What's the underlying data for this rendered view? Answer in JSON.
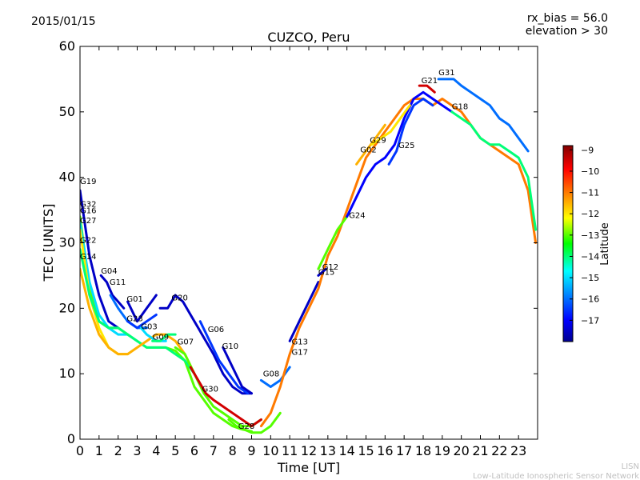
{
  "header": {
    "date": "2015/01/15",
    "rx_bias": "rx_bias = 56.0",
    "elevation": "elevation > 30"
  },
  "footer": {
    "line1": "LISN",
    "line2": "Low-Latitude Ionospheric Sensor Network"
  },
  "chart_data": {
    "type": "scatter",
    "title": "CUZCO, Peru",
    "xlabel": "Time [UT]",
    "ylabel": "TEC [UNITS]",
    "xlim": [
      0,
      24
    ],
    "ylim": [
      0,
      60
    ],
    "xticks": [
      0,
      1,
      2,
      3,
      4,
      5,
      6,
      7,
      8,
      9,
      10,
      11,
      12,
      13,
      14,
      15,
      16,
      17,
      18,
      19,
      20,
      21,
      22,
      23
    ],
    "yticks": [
      0,
      10,
      20,
      30,
      40,
      50,
      60
    ],
    "grid": false,
    "colorbar": {
      "label": "Latitude",
      "range": [
        -18,
        -8.8
      ],
      "ticks": [
        -9,
        -10,
        -11,
        -12,
        -13,
        -14,
        -15,
        -16,
        -17
      ]
    },
    "series": [
      {
        "name": "G19",
        "lat": -17.5,
        "x": [
          0,
          0.5,
          1,
          1.5,
          2
        ],
        "y": [
          38,
          28,
          22,
          18,
          17
        ]
      },
      {
        "name": "G32",
        "lat": -13,
        "x": [
          0,
          0.5,
          1,
          1.5,
          2,
          2.5,
          3,
          3.5,
          4,
          4.5,
          5,
          5.5,
          6,
          6.5,
          7,
          7.5,
          8,
          8.5,
          9
        ],
        "y": [
          34,
          23,
          18,
          17,
          17,
          16,
          15,
          14,
          14,
          14,
          13.5,
          12,
          8,
          6,
          4,
          3,
          2,
          1.5,
          1.2
        ]
      },
      {
        "name": "G16",
        "lat": -15,
        "x": [
          0,
          0.5,
          1,
          1.5,
          2,
          2.5,
          3
        ],
        "y": [
          33,
          24,
          19,
          17,
          16,
          16,
          15
        ]
      },
      {
        "name": "G27",
        "lat": -12,
        "x": [
          0,
          0.5,
          1,
          1.5,
          2,
          2.5
        ],
        "y": [
          32,
          22,
          17,
          14,
          13,
          13
        ]
      },
      {
        "name": "G22",
        "lat": -14,
        "x": [
          0,
          0.5,
          1,
          1.5,
          2,
          2.5,
          3,
          3.5,
          4,
          4.5,
          5,
          5.5,
          6
        ],
        "y": [
          29,
          22,
          18,
          17,
          17,
          16,
          15,
          14,
          14,
          14,
          13,
          12,
          10
        ]
      },
      {
        "name": "G14",
        "lat": -11.5,
        "x": [
          0,
          0.5,
          1,
          1.5,
          2,
          2.5,
          3,
          3.5,
          4,
          4.5,
          5,
          5.5,
          6
        ],
        "y": [
          26,
          20,
          16,
          14,
          13,
          13,
          14,
          15,
          16,
          16,
          15,
          13,
          10
        ]
      },
      {
        "name": "G04",
        "lat": -17.5,
        "x": [
          1.1,
          1.4,
          1.7,
          2,
          2.3
        ],
        "y": [
          25,
          24,
          22,
          21,
          20
        ]
      },
      {
        "name": "G11",
        "lat": -16,
        "x": [
          1.6,
          2,
          2.5,
          3,
          3.5
        ],
        "y": [
          22,
          20,
          18,
          17,
          17
        ]
      },
      {
        "name": "G01",
        "lat": -17.5,
        "x": [
          2.5,
          3,
          3.5,
          4
        ],
        "y": [
          21,
          18,
          20,
          22
        ]
      },
      {
        "name": "G23",
        "lat": -16.5,
        "x": [
          2.5,
          3,
          3.5,
          4
        ],
        "y": [
          18,
          17,
          18,
          19
        ]
      },
      {
        "name": "G03",
        "lat": -15,
        "x": [
          3.2,
          3.5,
          4,
          4.5
        ],
        "y": [
          17,
          16,
          15,
          15
        ]
      },
      {
        "name": "G09",
        "lat": -14,
        "x": [
          3.8,
          4.2,
          4.6,
          5
        ],
        "y": [
          15,
          15,
          16,
          16
        ]
      },
      {
        "name": "G20",
        "lat": -17.5,
        "x": [
          4.2,
          4.6,
          5,
          5.4,
          5.8,
          6.2,
          6.6,
          7,
          7.5,
          8,
          8.5,
          9
        ],
        "y": [
          20,
          20,
          22,
          21,
          19,
          17,
          15,
          13,
          10,
          8,
          7,
          7
        ]
      },
      {
        "name": "G07",
        "lat": -13,
        "x": [
          5,
          5.5,
          6,
          6.5,
          7,
          7.5,
          8,
          8.5,
          9,
          9.5
        ],
        "y": [
          14,
          13,
          10,
          7,
          5,
          4,
          3,
          2,
          2,
          3
        ]
      },
      {
        "name": "G06",
        "lat": -16.5,
        "x": [
          6.3,
          6.8,
          7.3,
          7.8,
          8.3,
          8.8
        ],
        "y": [
          18,
          15,
          12,
          10,
          8,
          7
        ]
      },
      {
        "name": "G10",
        "lat": -17.5,
        "x": [
          7.5,
          8,
          8.5,
          9
        ],
        "y": [
          14,
          11,
          8,
          7
        ]
      },
      {
        "name": "G30",
        "lat": -9.5,
        "x": [
          5.8,
          6.2,
          6.6,
          7,
          7.5,
          8,
          8.5,
          9,
          9.5
        ],
        "y": [
          11,
          9,
          7,
          6,
          5,
          4,
          3,
          2,
          3
        ]
      },
      {
        "name": "G28",
        "lat": -13,
        "x": [
          7.8,
          8.2,
          8.6,
          9,
          9.5,
          10,
          10.5
        ],
        "y": [
          3,
          2,
          1.5,
          1,
          1,
          2,
          4
        ]
      },
      {
        "name": "G08",
        "lat": -16,
        "x": [
          9.5,
          10,
          10.5,
          11
        ],
        "y": [
          9,
          8,
          9,
          11
        ]
      },
      {
        "name": "G13",
        "lat": -17.5,
        "x": [
          11,
          11.5,
          12,
          12.5
        ],
        "y": [
          15,
          18,
          21,
          24
        ]
      },
      {
        "name": "G17",
        "lat": -11,
        "x": [
          9.5,
          10,
          10.5,
          11,
          11.5,
          12,
          12.5,
          13,
          13.5,
          14,
          14.5,
          15,
          15.5,
          16,
          16.5,
          17,
          17.5,
          18,
          18.5,
          19,
          19.5,
          20,
          20.5,
          21,
          21.5,
          22,
          22.5,
          23,
          23.5,
          23.9
        ],
        "y": [
          2,
          4,
          8,
          13,
          17,
          20,
          23,
          28,
          31,
          35,
          39,
          43,
          45,
          47,
          49,
          51,
          52,
          52,
          51,
          52,
          51,
          50,
          48,
          46,
          45,
          44,
          43,
          42,
          38,
          30
        ]
      },
      {
        "name": "G12",
        "lat": -13,
        "x": [
          12.5,
          13,
          13.5,
          14
        ],
        "y": [
          26,
          29,
          32,
          34
        ]
      },
      {
        "name": "G15",
        "lat": -17.5,
        "x": [
          12.5,
          12.9
        ],
        "y": [
          25,
          26
        ]
      },
      {
        "name": "G24",
        "lat": -17,
        "x": [
          14,
          14.5,
          15,
          15.5,
          16,
          16.5,
          17,
          17.5,
          18,
          18.5,
          19,
          19.5
        ],
        "y": [
          34,
          37,
          40,
          42,
          43,
          45,
          49,
          52,
          53,
          52,
          51,
          50
        ]
      },
      {
        "name": "G02",
        "lat": -11.5,
        "x": [
          14.5,
          15,
          15.5,
          16
        ],
        "y": [
          42,
          44,
          46,
          48
        ]
      },
      {
        "name": "G29",
        "lat": -12,
        "x": [
          15.3,
          15.8,
          16.3,
          16.8,
          17.3
        ],
        "y": [
          45,
          46,
          47,
          49,
          51
        ]
      },
      {
        "name": "G25",
        "lat": -16.5,
        "x": [
          16.2,
          16.6,
          17,
          17.5,
          18,
          18.5
        ],
        "y": [
          42,
          44,
          48,
          51,
          52,
          51
        ]
      },
      {
        "name": "G21",
        "lat": -9.5,
        "x": [
          17.8,
          18.2,
          18.6
        ],
        "y": [
          54,
          54,
          53
        ]
      },
      {
        "name": "G31",
        "lat": -16,
        "x": [
          18.8,
          19.2,
          19.6,
          20,
          20.5,
          21,
          21.5,
          22,
          22.5,
          23,
          23.5
        ],
        "y": [
          55,
          55,
          55,
          54,
          53,
          52,
          51,
          49,
          48,
          46,
          44
        ]
      },
      {
        "name": "G18",
        "lat": -14,
        "x": [
          19.5,
          20,
          20.5,
          21,
          21.5,
          22,
          22.5,
          23,
          23.5,
          23.9
        ],
        "y": [
          50,
          49,
          48,
          46,
          45,
          45,
          44,
          43,
          40,
          32
        ]
      }
    ],
    "annotations": [
      {
        "text": "G19",
        "x": 0,
        "y": 39
      },
      {
        "text": "G32",
        "x": 0,
        "y": 35.5
      },
      {
        "text": "G16",
        "x": 0,
        "y": 34.5
      },
      {
        "text": "G27",
        "x": 0,
        "y": 33
      },
      {
        "text": "G22",
        "x": 0,
        "y": 30
      },
      {
        "text": "G14",
        "x": 0,
        "y": 27.5
      },
      {
        "text": "G04",
        "x": 1.1,
        "y": 25.3
      },
      {
        "text": "G11",
        "x": 1.55,
        "y": 23.6
      },
      {
        "text": "G01",
        "x": 2.45,
        "y": 21
      },
      {
        "text": "G23",
        "x": 2.45,
        "y": 18
      },
      {
        "text": "G03",
        "x": 3.2,
        "y": 16.8
      },
      {
        "text": "G09",
        "x": 3.8,
        "y": 15.2
      },
      {
        "text": "G20",
        "x": 4.8,
        "y": 21.2
      },
      {
        "text": "G07",
        "x": 5.1,
        "y": 14.5
      },
      {
        "text": "G06",
        "x": 6.7,
        "y": 16.4
      },
      {
        "text": "G10",
        "x": 7.45,
        "y": 13.8
      },
      {
        "text": "G30",
        "x": 6.4,
        "y": 7.3
      },
      {
        "text": "G28",
        "x": 8.3,
        "y": 1.6
      },
      {
        "text": "G08",
        "x": 9.6,
        "y": 9.6
      },
      {
        "text": "G13",
        "x": 11.1,
        "y": 14.5
      },
      {
        "text": "G17",
        "x": 11.1,
        "y": 12.9
      },
      {
        "text": "G12",
        "x": 12.7,
        "y": 25.9
      },
      {
        "text": "G15",
        "x": 12.5,
        "y": 25.1
      },
      {
        "text": "G24",
        "x": 14.1,
        "y": 33.8
      },
      {
        "text": "G02",
        "x": 14.7,
        "y": 43.8
      },
      {
        "text": "G29",
        "x": 15.2,
        "y": 45.3
      },
      {
        "text": "G25",
        "x": 16.7,
        "y": 44.5
      },
      {
        "text": "G21",
        "x": 17.9,
        "y": 54.4
      },
      {
        "text": "G31",
        "x": 18.8,
        "y": 55.6
      },
      {
        "text": "G18",
        "x": 19.5,
        "y": 50.4
      }
    ]
  }
}
